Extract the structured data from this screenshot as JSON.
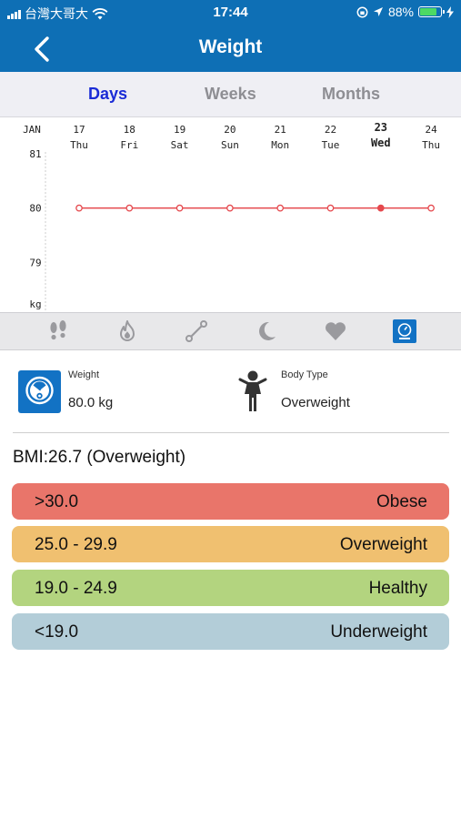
{
  "status": {
    "carrier": "台灣大哥大",
    "time": "17:44",
    "battery": "88%",
    "battery_level": 0.88
  },
  "nav": {
    "title": "Weight"
  },
  "tabs": [
    {
      "label": "Days",
      "active": true
    },
    {
      "label": "Weeks",
      "active": false
    },
    {
      "label": "Months",
      "active": false
    }
  ],
  "chart_data": {
    "type": "line",
    "month_label": "JAN",
    "x": [
      {
        "day": "17",
        "weekday": "Thu"
      },
      {
        "day": "18",
        "weekday": "Fri"
      },
      {
        "day": "19",
        "weekday": "Sat"
      },
      {
        "day": "20",
        "weekday": "Sun"
      },
      {
        "day": "21",
        "weekday": "Mon"
      },
      {
        "day": "22",
        "weekday": "Tue"
      },
      {
        "day": "23",
        "weekday": "Wed",
        "selected": true
      },
      {
        "day": "24",
        "weekday": "Thu"
      }
    ],
    "values": [
      80,
      80,
      80,
      80,
      80,
      80,
      80,
      80
    ],
    "y_ticks": [
      "81",
      "80",
      "79"
    ],
    "y_unit": "kg",
    "ylim": [
      78.2,
      81
    ],
    "line_color": "#e5484d"
  },
  "categories": [
    {
      "icon": "footsteps-icon"
    },
    {
      "icon": "flame-icon"
    },
    {
      "icon": "distance-icon"
    },
    {
      "icon": "moon-icon"
    },
    {
      "icon": "heart-icon"
    },
    {
      "icon": "scale-icon",
      "active": true
    }
  ],
  "summary": {
    "weight_label": "Weight",
    "weight_value": "80.0 kg",
    "body_type_label": "Body Type",
    "body_type_value": "Overweight",
    "bmi_text": "BMI:26.7 (Overweight)"
  },
  "bmi_bands": [
    {
      "range": ">30.0",
      "label": "Obese",
      "color": "#e9756a"
    },
    {
      "range": "25.0 - 29.9",
      "label": "Overweight",
      "color": "#f0c070"
    },
    {
      "range": "19.0 - 24.9",
      "label": "Healthy",
      "color": "#b3d47f"
    },
    {
      "range": "<19.0",
      "label": "Underweight",
      "color": "#b3cdd8"
    }
  ]
}
